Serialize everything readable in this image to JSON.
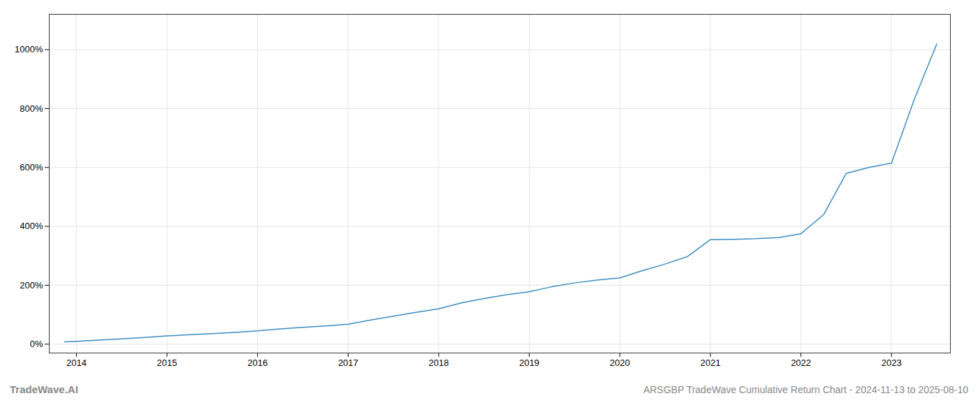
{
  "chart_data": {
    "type": "line",
    "title": "ARSGBP TradeWave Cumulative Return Chart - 2024-11-13 to 2025-08-10",
    "annotations": [
      "TradeWave.AI"
    ],
    "color": "#3a8cc1",
    "grid": true,
    "x": [
      2013.87,
      2014.0,
      2014.25,
      2014.5,
      2014.75,
      2015.0,
      2015.25,
      2015.5,
      2015.75,
      2016.0,
      2016.25,
      2016.5,
      2016.75,
      2017.0,
      2017.25,
      2017.5,
      2017.75,
      2018.0,
      2018.25,
      2018.5,
      2018.75,
      2019.0,
      2019.25,
      2019.5,
      2019.75,
      2020.0,
      2020.25,
      2020.5,
      2020.75,
      2021.0,
      2021.25,
      2021.5,
      2021.75,
      2022.0,
      2022.25,
      2022.5,
      2022.75,
      2023.0,
      2023.25,
      2023.5
    ],
    "values": [
      8,
      10,
      14,
      18,
      23,
      28,
      32,
      36,
      40,
      45,
      52,
      57,
      62,
      68,
      82,
      95,
      108,
      120,
      140,
      155,
      168,
      178,
      195,
      208,
      218,
      225,
      250,
      272,
      298,
      355,
      356,
      358,
      362,
      375,
      440,
      580,
      600,
      615,
      830,
      1020
    ],
    "xlim": [
      2013.7,
      2023.65
    ],
    "xticks": [
      2014,
      2015,
      2016,
      2017,
      2018,
      2019,
      2020,
      2021,
      2022,
      2023
    ],
    "ylim": [
      -30,
      1120
    ],
    "yticks": [
      {
        "value": 0,
        "label": "0%"
      },
      {
        "value": 200,
        "label": "200%"
      },
      {
        "value": 400,
        "label": "400%"
      },
      {
        "value": 600,
        "label": "600%"
      },
      {
        "value": 800,
        "label": "800%"
      },
      {
        "value": 1000,
        "label": "1000%"
      }
    ]
  }
}
